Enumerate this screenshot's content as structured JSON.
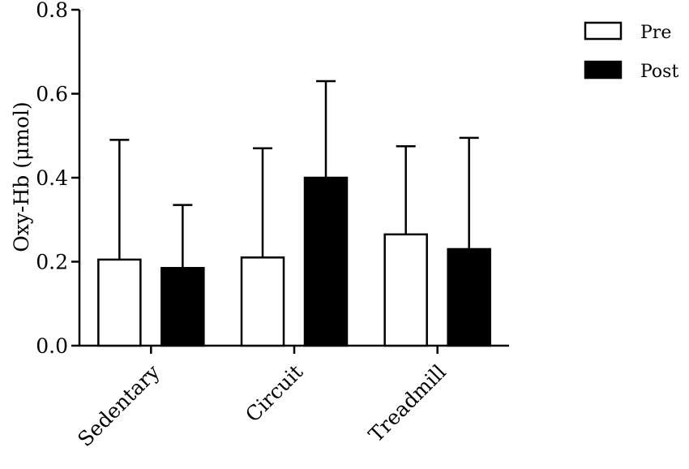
{
  "chart_data": {
    "type": "bar",
    "title": "",
    "xlabel": "",
    "ylabel": "Oxy-Hb (μmol)",
    "ylim": [
      0,
      0.8
    ],
    "yticks": [
      "0.0",
      "0.2",
      "0.4",
      "0.6",
      "0.8"
    ],
    "grid": false,
    "legend_position": "top-right",
    "categories": [
      "Sedentary",
      "Circuit",
      "Treadmill"
    ],
    "series": [
      {
        "name": "Pre",
        "color": "#ffffff",
        "values": [
          0.205,
          0.21,
          0.265
        ],
        "error": [
          0.285,
          0.26,
          0.21
        ]
      },
      {
        "name": "Post",
        "color": "#000000",
        "values": [
          0.185,
          0.4,
          0.23
        ],
        "error": [
          0.15,
          0.23,
          0.265
        ]
      }
    ]
  }
}
